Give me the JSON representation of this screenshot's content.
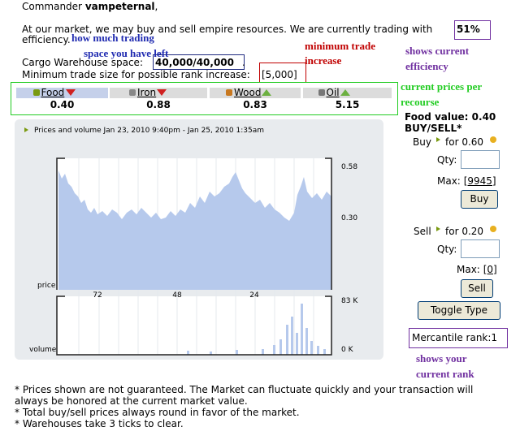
{
  "greeting": {
    "prefix": "Commander",
    "name": "vampeternal",
    "suffix": ","
  },
  "intro": {
    "text": "At our market, we may buy and sell empire resources. We are currently trading with",
    "efficiency": "51%",
    "end": "efficiency."
  },
  "cargo": {
    "label": "Cargo Warehouse space:",
    "value": "40,000/40,000",
    "end": "."
  },
  "min_trade": {
    "label": "Minimum trade size for possible rank increase:",
    "value": "[5,000]"
  },
  "resources": [
    {
      "name": "Food",
      "price": "0.40",
      "trend": "down"
    },
    {
      "name": "Iron",
      "price": "0.88",
      "trend": "down"
    },
    {
      "name": "Wood",
      "price": "0.83",
      "trend": "up"
    },
    {
      "name": "Oil",
      "price": "5.15",
      "trend": "up"
    }
  ],
  "chart": {
    "title": "Prices and volume Jan 23, 2010 9:40pm - Jan 25, 2010 1:35am",
    "price_labels": [
      "0.58",
      "0.30"
    ],
    "x_labels": [
      "72",
      "48",
      "24"
    ],
    "volume_labels": [
      "83 K",
      "0 K"
    ],
    "price_axis": "price",
    "volume_axis": "volume"
  },
  "trade_panel": {
    "value_line": "Food value: 0.40",
    "buy_sell": "BUY/SELL*",
    "buy": {
      "label": "Buy",
      "price": "for 0.60",
      "qty": "Qty:",
      "max_label": "Max:",
      "max": "[9945]",
      "button": "Buy"
    },
    "sell": {
      "label": "Sell",
      "price": "for 0.20",
      "qty": "Qty:",
      "max_label": "Max:",
      "max": "[0]",
      "button": "Sell"
    },
    "toggle": "Toggle Type",
    "rank": "Mercantile rank:1"
  },
  "annotations": {
    "trading_space": [
      "how much trading",
      "space you have left"
    ],
    "min_trade": [
      "minimum trade",
      "increase"
    ],
    "efficiency": [
      "shows current",
      "efficiency"
    ],
    "prices": [
      "current prices per",
      "recourse"
    ],
    "rank": [
      "shows your",
      "current rank"
    ]
  },
  "notes": [
    "* Prices shown are not guaranteed. The Market can fluctuate quickly and your transaction will",
    "always be honored at the current market value.",
    "* Total buy/sell prices always round in favor of the market.",
    "* Warehouses take 3 ticks to clear."
  ]
}
